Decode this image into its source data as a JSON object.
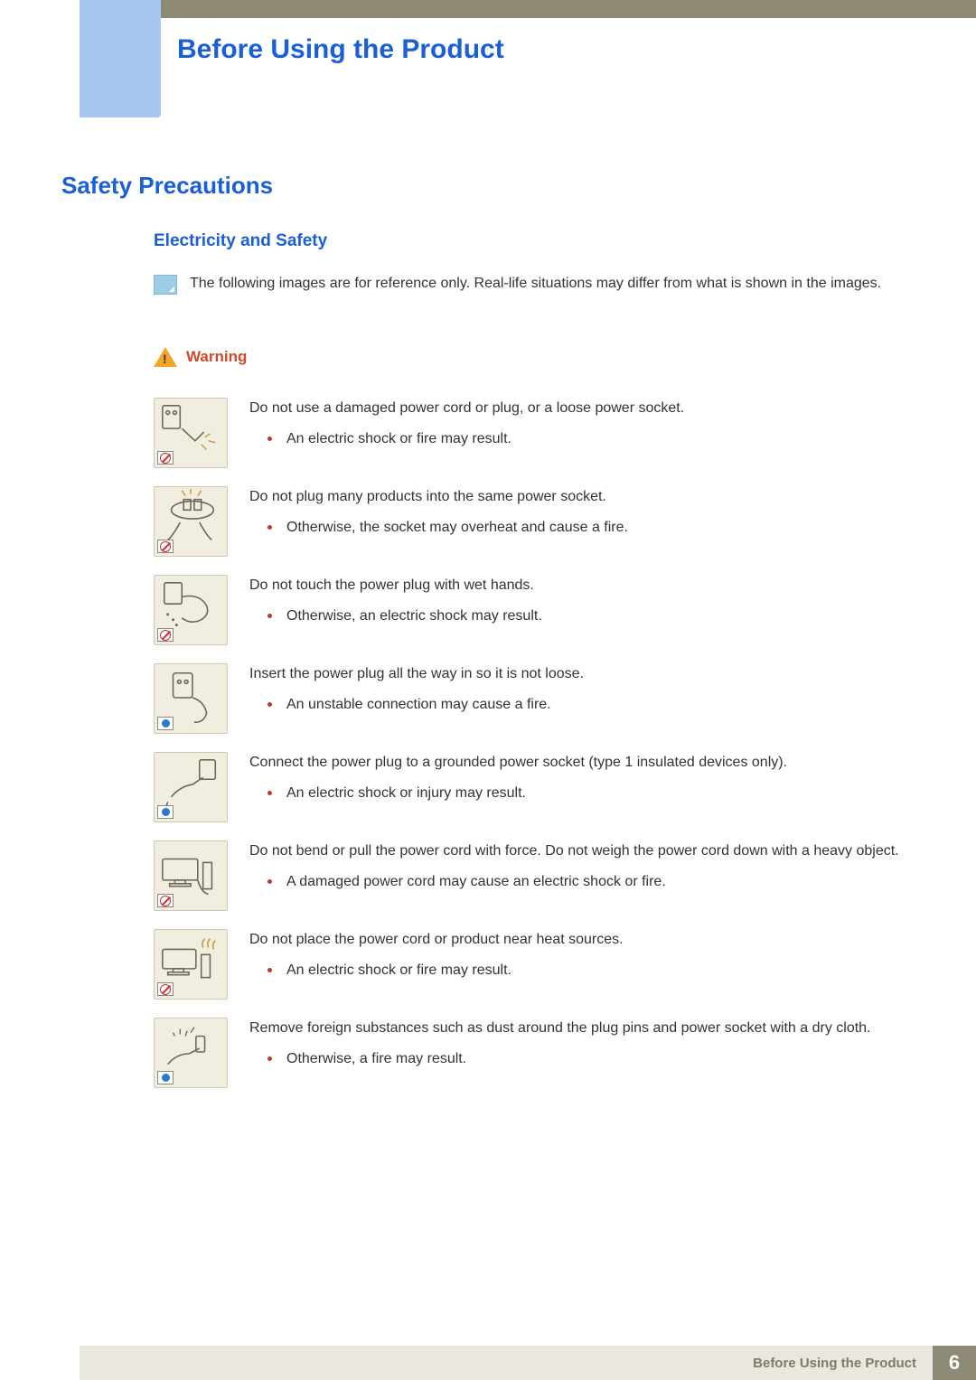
{
  "colors": {
    "chapter_title": "#1a5fd6",
    "section_title": "#1a5fd6",
    "subsection_title": "#1a5fd6",
    "warning_label": "#d04a29",
    "warning_triangle": "#f5a623",
    "bullet": "#c0392b",
    "body_text": "#333333",
    "top_bar": "#8f8a76",
    "left_tab": "#a6c8f0",
    "footer_bg": "#eae7de",
    "footer_text": "#7f7a66",
    "page_bg": "#8f8a76",
    "thumb_bg": "#f1eee0"
  },
  "chapter_title": "Before Using the Product",
  "section_title": "Safety Precautions",
  "subsection_title": "Electricity and Safety",
  "note_text": "The following images are for reference only. Real-life situations may differ from what is shown in the images.",
  "warning_label": "Warning",
  "items": [
    {
      "badge": "no",
      "head": "Do not use a damaged power cord or plug, or a loose power socket.",
      "bullets": [
        "An electric shock or fire may result."
      ],
      "illus": "plug-spark"
    },
    {
      "badge": "no",
      "head": "Do not plug many products into the same power socket.",
      "bullets": [
        "Otherwise, the socket may overheat and cause a fire."
      ],
      "illus": "multi-plug"
    },
    {
      "badge": "no",
      "head": "Do not touch the power plug with wet hands.",
      "bullets": [
        "Otherwise, an electric shock may result."
      ],
      "illus": "wet-hand"
    },
    {
      "badge": "yes",
      "head": "Insert the power plug all the way in so it is not loose.",
      "bullets": [
        "An unstable connection may cause a fire."
      ],
      "illus": "insert-plug"
    },
    {
      "badge": "yes",
      "head": "Connect the power plug to a grounded power socket (type 1 insulated devices only).",
      "bullets": [
        "An electric shock or injury may result."
      ],
      "illus": "ground-plug"
    },
    {
      "badge": "no",
      "head": "Do not bend or pull the power cord with force. Do not weigh the power cord down with a heavy object.",
      "bullets": [
        "A damaged power cord may cause an electric shock or fire."
      ],
      "illus": "monitor-cord"
    },
    {
      "badge": "no",
      "head": "Do not place the power cord or product near heat sources.",
      "bullets": [
        "An electric shock or fire may result."
      ],
      "illus": "monitor-heat"
    },
    {
      "badge": "yes",
      "head": "Remove foreign substances such as dust around the plug pins and power socket with a dry cloth.",
      "bullets": [
        "Otherwise, a fire may result."
      ],
      "illus": "clean-plug"
    }
  ],
  "footer_text": "Before Using the Product",
  "page_number": "6"
}
